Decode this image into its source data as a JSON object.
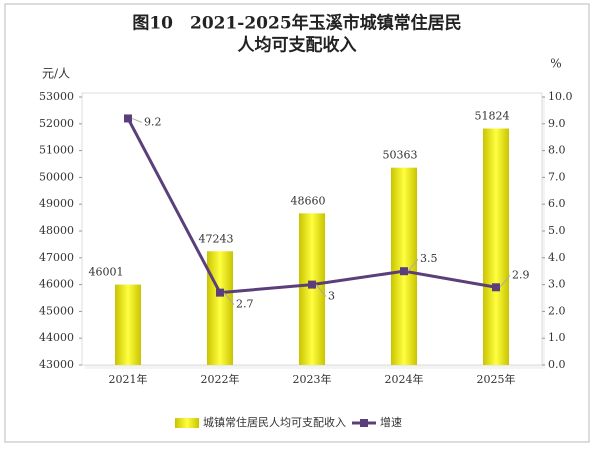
{
  "chart_data": {
    "type": "bar-line",
    "title_lines": [
      "图10　2021-2025年玉溪市城镇常住居民",
      "人均可支配收入"
    ],
    "ylabel": "元/人",
    "y2label": "%",
    "categories": [
      "2021年",
      "2022年",
      "2023年",
      "2024年",
      "2025年"
    ],
    "series": [
      {
        "name": "城镇常住居民人均可支配收入",
        "type": "bar",
        "color": "#c9c400",
        "values": [
          46001,
          47243,
          48660,
          50363,
          51824
        ]
      },
      {
        "name": "增速",
        "type": "line",
        "axis": "y2",
        "color": "#5b3f7a",
        "values": [
          9.2,
          2.7,
          3,
          3.5,
          2.9
        ]
      }
    ],
    "ylim": [
      43000,
      53000
    ],
    "yticks": [
      43000,
      44000,
      45000,
      46000,
      47000,
      48000,
      49000,
      50000,
      51000,
      52000,
      53000
    ],
    "y2lim": [
      0,
      10
    ],
    "y2ticks": [
      {
        "value": 0,
        "label": "0.0"
      },
      {
        "value": 1,
        "label": "1.0"
      },
      {
        "value": 2,
        "label": "2.0"
      },
      {
        "value": 3,
        "label": "3.0"
      },
      {
        "value": 4,
        "label": "4.0"
      },
      {
        "value": 5,
        "label": "5.0"
      },
      {
        "value": 6,
        "label": "6.0"
      },
      {
        "value": 7,
        "label": "7.0"
      },
      {
        "value": 8,
        "label": "8.0"
      },
      {
        "value": 9,
        "label": "9.0"
      },
      {
        "value": 10,
        "label": "10.0"
      }
    ],
    "legend": "bottom"
  }
}
